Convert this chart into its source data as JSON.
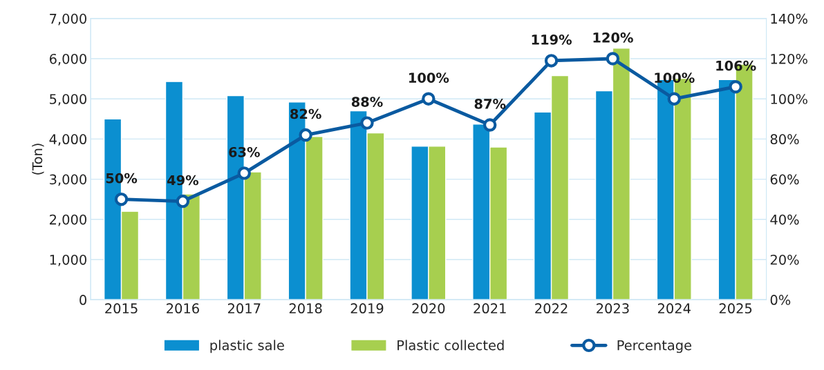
{
  "chart_data": {
    "type": "bar",
    "ylabel": "(Ton)",
    "categories": [
      "2015",
      "2016",
      "2017",
      "2018",
      "2019",
      "2020",
      "2021",
      "2022",
      "2023",
      "2024",
      "2025"
    ],
    "series": [
      {
        "name": "plastic sale",
        "color": "#0b8fd0",
        "values": [
          4500,
          5430,
          5080,
          4920,
          4700,
          3820,
          4370,
          4670,
          5200,
          5480,
          5480
        ]
      },
      {
        "name": "Plastic collected",
        "color": "#a7cf4f",
        "values": [
          2200,
          2630,
          3180,
          4060,
          4150,
          3820,
          3800,
          5580,
          6260,
          5510,
          5860
        ]
      },
      {
        "name": "Percentage",
        "type": "line",
        "axis": "y2",
        "color": "#0a5aa0",
        "marker": "circle",
        "values": [
          50,
          49,
          63,
          82,
          88,
          100,
          87,
          119,
          120,
          100,
          106
        ],
        "value_labels": [
          "50%",
          "49%",
          "63%",
          "82%",
          "88%",
          "100%",
          "87%",
          "119%",
          "120%",
          "100%",
          "106%"
        ]
      }
    ],
    "ylim": [
      0,
      7000
    ],
    "yticks": [
      {
        "value": 0,
        "label": "0"
      },
      {
        "value": 1000,
        "label": "1,000"
      },
      {
        "value": 2000,
        "label": "2,000"
      },
      {
        "value": 3000,
        "label": "3,000"
      },
      {
        "value": 4000,
        "label": "4,000"
      },
      {
        "value": 5000,
        "label": "5,000"
      },
      {
        "value": 6000,
        "label": "6,000"
      },
      {
        "value": 7000,
        "label": "7,000"
      }
    ],
    "y2lim": [
      0,
      140
    ],
    "y2ticks": [
      {
        "value": 0,
        "label": "0%"
      },
      {
        "value": 20,
        "label": "20%"
      },
      {
        "value": 40,
        "label": "40%"
      },
      {
        "value": 60,
        "label": "60%"
      },
      {
        "value": 80,
        "label": "80%"
      },
      {
        "value": 100,
        "label": "100%"
      },
      {
        "value": 120,
        "label": "120%"
      },
      {
        "value": 140,
        "label": "140%"
      }
    ],
    "grid": "y",
    "legend": "bottom"
  }
}
